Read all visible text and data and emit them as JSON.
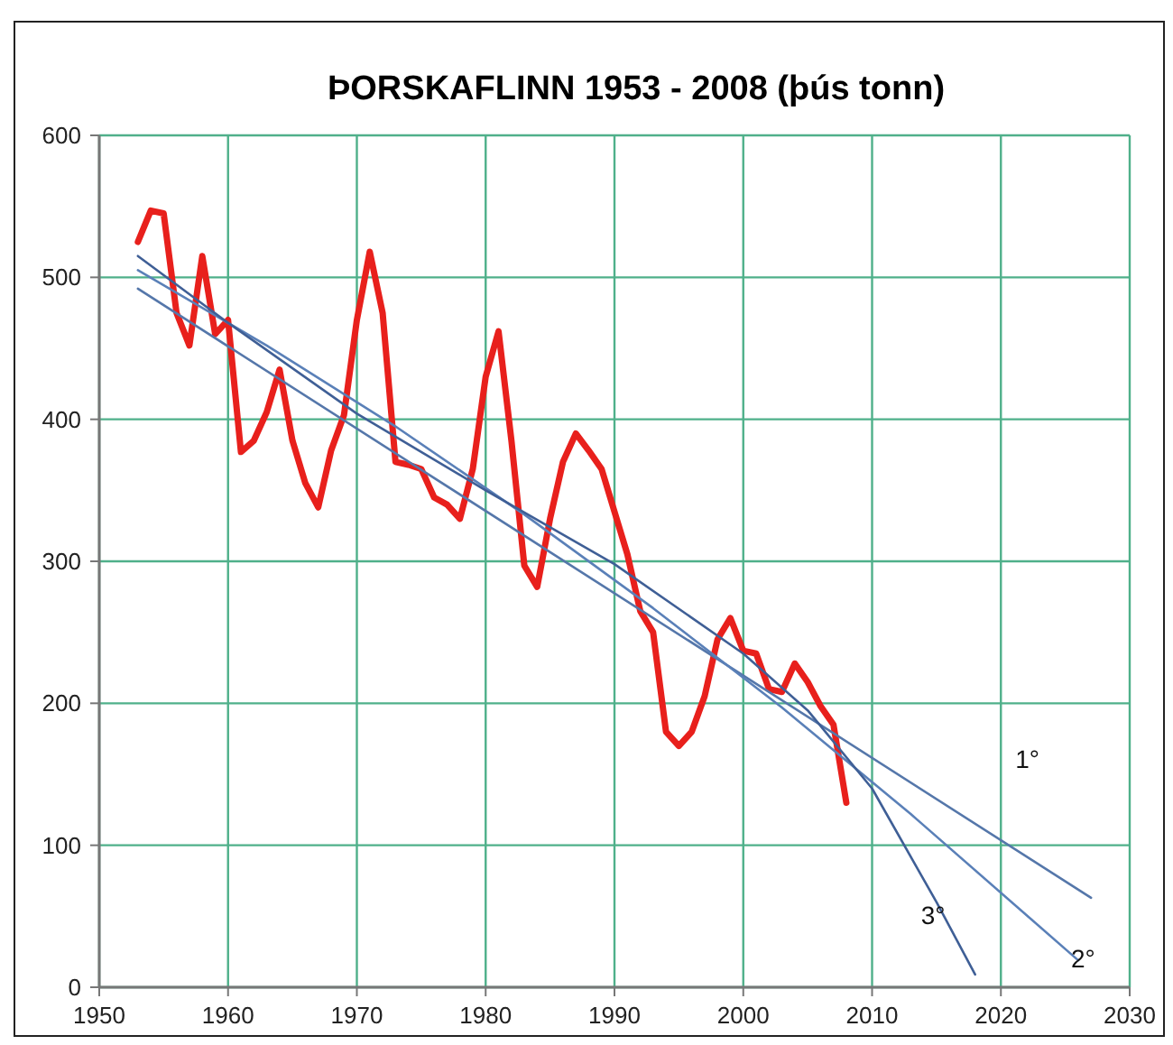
{
  "chart_data": {
    "type": "line",
    "title": "ÞORSKAFLINN 1953 - 2008 (þús tonn)",
    "grid": true,
    "legend": false,
    "line_style": "solid",
    "marker": "none",
    "xlim": [
      1950,
      2030
    ],
    "xticks": [
      1950,
      1960,
      1970,
      1980,
      1990,
      2000,
      2010,
      2020,
      2030
    ],
    "ylim": [
      0,
      600
    ],
    "yticks": [
      0,
      100,
      200,
      300,
      400,
      500,
      600
    ],
    "series": [
      {
        "color": "#e8201c",
        "x": [
          1953,
          1954,
          1955,
          1956,
          1957,
          1958,
          1959,
          1960,
          1961,
          1962,
          1963,
          1964,
          1965,
          1966,
          1967,
          1968,
          1969,
          1970,
          1971,
          1972,
          1973,
          1974,
          1975,
          1976,
          1977,
          1978,
          1979,
          1980,
          1981,
          1982,
          1983,
          1984,
          1985,
          1986,
          1987,
          1988,
          1989,
          1990,
          1991,
          1992,
          1993,
          1994,
          1995,
          1996,
          1997,
          1998,
          1999,
          2000,
          2001,
          2002,
          2003,
          2004,
          2005,
          2006,
          2007,
          2008
        ],
        "values": [
          525,
          547,
          545,
          475,
          452,
          515,
          460,
          470,
          377,
          385,
          405,
          435,
          385,
          355,
          338,
          378,
          403,
          470,
          518,
          475,
          370,
          368,
          365,
          345,
          340,
          330,
          365,
          430,
          462,
          385,
          297,
          282,
          330,
          370,
          390,
          378,
          365,
          335,
          305,
          265,
          250,
          180,
          170,
          180,
          205,
          245,
          260,
          237,
          235,
          210,
          208,
          228,
          215,
          198,
          185,
          130
        ]
      },
      {
        "name": "1°",
        "color": "#5577aa",
        "x": [
          1953,
          2027
        ],
        "values": [
          492,
          63
        ]
      },
      {
        "name": "2°",
        "color": "#5a80b8",
        "x": [
          1953,
          1963,
          1973,
          1983,
          1993,
          2000,
          2003,
          2013,
          2026
        ],
        "values": [
          505,
          452,
          395,
          333,
          267,
          218,
          197,
          122,
          19
        ]
      },
      {
        "name": "3°",
        "color": "#3f5f96",
        "x": [
          1953,
          1960,
          1970,
          1980,
          1990,
          2000,
          2005,
          2010,
          2015,
          2018
        ],
        "values": [
          515,
          468,
          404,
          350,
          298,
          235,
          195,
          140,
          60,
          9
        ]
      }
    ]
  }
}
